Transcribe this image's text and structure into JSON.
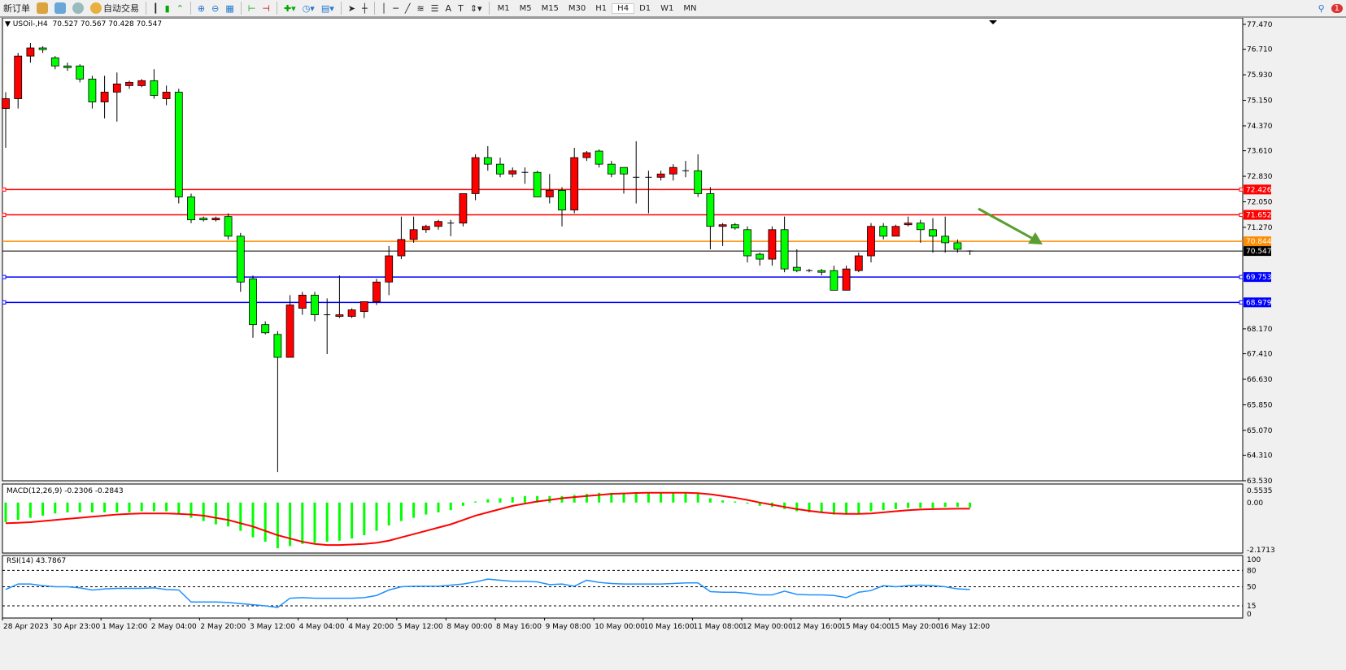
{
  "toolbar": {
    "new_order": "新订单",
    "auto_trading": "自动交易",
    "timeframes": [
      "M1",
      "M5",
      "M15",
      "M30",
      "H1",
      "H4",
      "D1",
      "W1",
      "MN"
    ],
    "active_timeframe": "H4",
    "notification_count": "1",
    "icons": [
      "market-watch-icon",
      "data-window-icon",
      "signal-icon",
      "bar-chart-icon",
      "candlestick-icon",
      "line-chart-icon",
      "zoom-in-icon",
      "zoom-out-icon",
      "tile-windows-icon",
      "chart-shift-icon",
      "autoscroll-icon",
      "indicators-icon",
      "periods-icon",
      "templates-icon",
      "cursor-icon",
      "crosshair-icon",
      "vertical-line-icon",
      "horizontal-line-icon",
      "trendline-icon",
      "fibonacci-icon",
      "text-icon",
      "label-icon",
      "arrows-icon",
      "search-icon"
    ]
  },
  "chart": {
    "symbol_label": "USOil-,H4",
    "ohlc_label": "70.527 70.567 70.428 70.547",
    "bull_color": "#ff0000",
    "bear_color": "#00ff00",
    "price_ticks": [
      "77.470",
      "76.710",
      "75.930",
      "75.150",
      "74.370",
      "73.610",
      "72.830",
      "72.050",
      "71.270",
      "68.170",
      "67.410",
      "66.630",
      "65.850",
      "65.070",
      "64.310",
      "63.530"
    ],
    "ylim": [
      63.53,
      77.47
    ],
    "levels": [
      {
        "value": "72.426",
        "color": "#ff0000"
      },
      {
        "value": "71.652",
        "color": "#ff0000"
      },
      {
        "value": "70.844",
        "color": "#ff8c00"
      },
      {
        "value": "70.547",
        "color": "#000000"
      },
      {
        "value": "69.753",
        "color": "#0000ff"
      },
      {
        "value": "68.979",
        "color": "#0000ff"
      }
    ],
    "arrow_color": "#5a9e2f",
    "time_labels": [
      "28 Apr 2023",
      "30 Apr 23:00",
      "1 May 12:00",
      "2 May 04:00",
      "2 May 20:00",
      "3 May 12:00",
      "4 May 04:00",
      "4 May 20:00",
      "5 May 12:00",
      "8 May 00:00",
      "8 May 16:00",
      "9 May 08:00",
      "10 May 00:00",
      "10 May 16:00",
      "11 May 08:00",
      "12 May 00:00",
      "12 May 16:00",
      "15 May 04:00",
      "15 May 20:00",
      "16 May 12:00"
    ]
  },
  "chart_data": {
    "type": "candlestick",
    "ohlc": [
      [
        74.9,
        75.4,
        73.7,
        75.2
      ],
      [
        75.2,
        76.6,
        74.9,
        76.5
      ],
      [
        76.5,
        76.9,
        76.3,
        76.75
      ],
      [
        76.75,
        76.8,
        76.6,
        76.7
      ],
      [
        76.45,
        76.5,
        76.1,
        76.2
      ],
      [
        76.2,
        76.3,
        76.05,
        76.15
      ],
      [
        76.2,
        76.25,
        75.7,
        75.8
      ],
      [
        75.8,
        75.9,
        74.9,
        75.1
      ],
      [
        75.1,
        75.9,
        74.6,
        75.4
      ],
      [
        75.4,
        76.0,
        74.5,
        75.65
      ],
      [
        75.6,
        75.75,
        75.5,
        75.7
      ],
      [
        75.6,
        75.8,
        75.55,
        75.75
      ],
      [
        75.75,
        76.1,
        75.2,
        75.3
      ],
      [
        75.2,
        75.6,
        75.0,
        75.4
      ],
      [
        75.4,
        75.5,
        72.0,
        72.2
      ],
      [
        72.2,
        72.3,
        71.4,
        71.5
      ],
      [
        71.55,
        71.6,
        71.45,
        71.5
      ],
      [
        71.5,
        71.6,
        71.45,
        71.55
      ],
      [
        71.6,
        71.7,
        70.9,
        71.0
      ],
      [
        71.0,
        71.1,
        69.3,
        69.6
      ],
      [
        69.7,
        69.8,
        67.9,
        68.3
      ],
      [
        68.3,
        68.4,
        68.0,
        68.05
      ],
      [
        68.0,
        68.1,
        63.8,
        67.3
      ],
      [
        67.3,
        69.2,
        67.3,
        68.9
      ],
      [
        68.8,
        69.3,
        68.6,
        69.2
      ],
      [
        69.2,
        69.3,
        68.4,
        68.6
      ],
      [
        68.6,
        69.1,
        67.4,
        68.6
      ],
      [
        68.55,
        69.8,
        68.5,
        68.6
      ],
      [
        68.55,
        68.8,
        68.5,
        68.75
      ],
      [
        68.7,
        69.0,
        68.5,
        69.0
      ],
      [
        69.0,
        69.7,
        68.9,
        69.6
      ],
      [
        69.6,
        70.7,
        69.2,
        70.4
      ],
      [
        70.4,
        71.6,
        70.3,
        70.9
      ],
      [
        70.9,
        71.6,
        70.8,
        71.2
      ],
      [
        71.2,
        71.35,
        71.1,
        71.3
      ],
      [
        71.3,
        71.5,
        71.2,
        71.45
      ],
      [
        71.4,
        71.5,
        71.0,
        71.4
      ],
      [
        71.4,
        72.3,
        71.3,
        72.3
      ],
      [
        72.3,
        73.5,
        72.1,
        73.4
      ],
      [
        73.4,
        73.75,
        73.0,
        73.2
      ],
      [
        73.2,
        73.4,
        72.8,
        72.9
      ],
      [
        72.9,
        73.1,
        72.8,
        73.0
      ],
      [
        72.95,
        73.1,
        72.6,
        72.95
      ],
      [
        72.95,
        73.0,
        72.2,
        72.2
      ],
      [
        72.2,
        72.9,
        72.0,
        72.4
      ],
      [
        72.4,
        72.5,
        71.3,
        71.8
      ],
      [
        71.8,
        73.7,
        71.7,
        73.4
      ],
      [
        73.4,
        73.6,
        73.3,
        73.55
      ],
      [
        73.6,
        73.65,
        73.1,
        73.2
      ],
      [
        73.2,
        73.3,
        72.8,
        72.9
      ],
      [
        73.1,
        73.1,
        72.3,
        72.9
      ],
      [
        72.8,
        73.9,
        72.0,
        72.8
      ],
      [
        72.8,
        73.0,
        71.7,
        72.8
      ],
      [
        72.8,
        73.0,
        72.7,
        72.9
      ],
      [
        72.9,
        73.2,
        72.7,
        73.1
      ],
      [
        73.0,
        73.3,
        72.8,
        73.0
      ],
      [
        73.0,
        73.5,
        72.2,
        72.3
      ],
      [
        72.3,
        72.5,
        70.6,
        71.3
      ],
      [
        71.3,
        71.4,
        70.7,
        71.35
      ],
      [
        71.35,
        71.4,
        71.2,
        71.25
      ],
      [
        71.2,
        71.3,
        70.2,
        70.4
      ],
      [
        70.45,
        70.5,
        70.1,
        70.3
      ],
      [
        70.3,
        71.3,
        70.1,
        71.2
      ],
      [
        71.2,
        71.6,
        69.9,
        70.0
      ],
      [
        70.05,
        70.6,
        69.9,
        69.95
      ],
      [
        69.95,
        70.0,
        69.9,
        69.95
      ],
      [
        69.95,
        70.0,
        69.8,
        69.9
      ],
      [
        69.95,
        70.1,
        69.35,
        69.35
      ],
      [
        69.35,
        70.1,
        69.35,
        70.0
      ],
      [
        69.95,
        70.5,
        69.9,
        70.4
      ],
      [
        70.4,
        71.4,
        70.2,
        71.3
      ],
      [
        71.3,
        71.4,
        70.9,
        71.0
      ],
      [
        71.0,
        71.35,
        71.0,
        71.3
      ],
      [
        71.35,
        71.6,
        71.3,
        71.4
      ],
      [
        71.4,
        71.5,
        70.8,
        71.2
      ],
      [
        71.2,
        71.55,
        70.5,
        71.0
      ],
      [
        71.0,
        71.6,
        70.5,
        70.8
      ],
      [
        70.8,
        70.9,
        70.5,
        70.6
      ],
      [
        70.527,
        70.567,
        70.428,
        70.547
      ]
    ],
    "macd": {
      "label": "MACD(12,26,9) -0.2306 -0.2843",
      "ticks": [
        "0.5535",
        "0.00",
        "-2.1713"
      ],
      "ylim": [
        -2.1713,
        0.5535
      ],
      "histogram": [
        -0.9,
        -0.8,
        -0.7,
        -0.6,
        -0.5,
        -0.45,
        -0.45,
        -0.45,
        -0.45,
        -0.45,
        -0.45,
        -0.4,
        -0.4,
        -0.4,
        -0.5,
        -0.7,
        -0.85,
        -1.0,
        -1.1,
        -1.3,
        -1.6,
        -1.8,
        -2.1,
        -2.0,
        -1.9,
        -1.85,
        -1.8,
        -1.75,
        -1.65,
        -1.5,
        -1.3,
        -1.05,
        -0.85,
        -0.7,
        -0.55,
        -0.45,
        -0.35,
        -0.15,
        0.05,
        0.15,
        0.2,
        0.25,
        0.3,
        0.3,
        0.3,
        0.3,
        0.35,
        0.4,
        0.45,
        0.45,
        0.45,
        0.45,
        0.45,
        0.45,
        0.45,
        0.45,
        0.4,
        0.2,
        0.1,
        0.05,
        -0.05,
        -0.15,
        -0.2,
        -0.3,
        -0.4,
        -0.45,
        -0.45,
        -0.55,
        -0.55,
        -0.5,
        -0.4,
        -0.35,
        -0.3,
        -0.25,
        -0.25,
        -0.25,
        -0.2,
        -0.2,
        -0.23
      ],
      "signal": [
        -0.95,
        -0.93,
        -0.9,
        -0.85,
        -0.8,
        -0.75,
        -0.7,
        -0.65,
        -0.6,
        -0.55,
        -0.52,
        -0.5,
        -0.5,
        -0.5,
        -0.52,
        -0.55,
        -0.6,
        -0.7,
        -0.8,
        -0.95,
        -1.1,
        -1.3,
        -1.5,
        -1.65,
        -1.8,
        -1.9,
        -1.95,
        -1.95,
        -1.93,
        -1.9,
        -1.85,
        -1.75,
        -1.6,
        -1.45,
        -1.3,
        -1.15,
        -1.0,
        -0.8,
        -0.6,
        -0.45,
        -0.3,
        -0.15,
        -0.05,
        0.05,
        0.12,
        0.2,
        0.25,
        0.3,
        0.35,
        0.4,
        0.42,
        0.44,
        0.45,
        0.45,
        0.45,
        0.45,
        0.43,
        0.38,
        0.3,
        0.22,
        0.12,
        0.0,
        -0.1,
        -0.2,
        -0.3,
        -0.38,
        -0.45,
        -0.5,
        -0.52,
        -0.52,
        -0.5,
        -0.45,
        -0.4,
        -0.35,
        -0.32,
        -0.3,
        -0.29,
        -0.28,
        -0.28
      ],
      "histogram_color": "#00ff00",
      "signal_color": "#ff0000"
    },
    "rsi": {
      "label": "RSI(14) 43.7867",
      "ticks": [
        "100",
        "80",
        "50",
        "15",
        "0"
      ],
      "levels": [
        80,
        50,
        15
      ],
      "ylim": [
        0,
        100
      ],
      "color": "#1e90ff",
      "values": [
        45,
        55,
        55,
        52,
        50,
        50,
        48,
        44,
        46,
        47,
        47,
        47,
        48,
        45,
        44,
        22,
        22,
        22,
        21,
        19,
        17,
        15,
        12,
        29,
        30,
        29,
        29,
        29,
        29,
        30,
        34,
        44,
        50,
        51,
        51,
        51,
        53,
        55,
        59,
        64,
        62,
        60,
        60,
        59,
        54,
        55,
        51,
        62,
        58,
        56,
        55,
        55,
        55,
        55,
        56,
        57,
        57,
        41,
        40,
        40,
        38,
        35,
        35,
        42,
        36,
        35,
        35,
        34,
        30,
        40,
        43,
        52,
        50,
        52,
        53,
        52,
        50,
        46,
        45
      ]
    }
  }
}
